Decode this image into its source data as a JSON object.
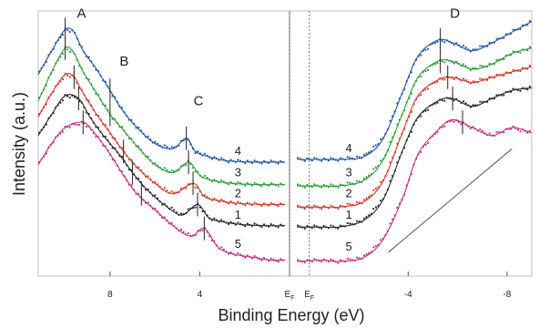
{
  "chart_data": {
    "type": "line",
    "xlabel": "Binding Energy (eV)",
    "ylabel": "Intensity (a.u.)",
    "left_panel": {
      "xlim": [
        11.2,
        0
      ],
      "ticks": [
        {
          "value": 8,
          "label": "8"
        },
        {
          "value": 4,
          "label": "4"
        }
      ],
      "fermi_label": "E",
      "fermi_sub": "F"
    },
    "right_panel": {
      "xlim": [
        0.8,
        -9
      ],
      "ticks": [
        {
          "value": -4,
          "label": "-4"
        },
        {
          "value": -8,
          "label": "-8"
        }
      ],
      "fermi_label": "E",
      "fermi_sub": "F"
    },
    "ylim": [
      0,
      10
    ],
    "peak_labels": [
      {
        "text": "A",
        "panel": "left",
        "x": 9.8,
        "y": 9.6
      },
      {
        "text": "B",
        "panel": "left",
        "x": 7.9,
        "y": 7.8
      },
      {
        "text": "C",
        "panel": "left",
        "x": 4.6,
        "y": 6.3
      },
      {
        "text": "D",
        "panel": "right",
        "x": -5.4,
        "y": 9.6
      }
    ],
    "series": [
      {
        "name": "4",
        "color": "#2155a8",
        "left": [
          [
            11.2,
            7.6
          ],
          [
            10.6,
            8.5
          ],
          [
            10.0,
            9.3
          ],
          [
            9.6,
            9.2
          ],
          [
            9.2,
            8.5
          ],
          [
            8.6,
            7.8
          ],
          [
            8.0,
            7.0
          ],
          [
            7.4,
            6.2
          ],
          [
            6.8,
            5.6
          ],
          [
            6.0,
            5.0
          ],
          [
            5.2,
            4.8
          ],
          [
            4.6,
            5.2
          ],
          [
            4.2,
            4.7
          ],
          [
            3.6,
            4.5
          ],
          [
            2.8,
            4.35
          ],
          [
            1.6,
            4.3
          ],
          [
            0.2,
            4.3
          ]
        ],
        "right": [
          [
            0.5,
            4.4
          ],
          [
            -0.5,
            4.4
          ],
          [
            -1.2,
            4.4
          ],
          [
            -2.2,
            4.5
          ],
          [
            -3.0,
            5.2
          ],
          [
            -3.8,
            7.0
          ],
          [
            -4.4,
            8.3
          ],
          [
            -5.2,
            8.9
          ],
          [
            -5.8,
            8.8
          ],
          [
            -6.6,
            8.5
          ],
          [
            -7.4,
            8.8
          ],
          [
            -8.2,
            9.2
          ],
          [
            -9.0,
            9.6
          ]
        ],
        "label_left": [
          2.3,
          4.5
        ],
        "label_right": [
          -1.6,
          4.6
        ]
      },
      {
        "name": "3",
        "color": "#2e9e3a",
        "left": [
          [
            11.2,
            6.6
          ],
          [
            10.6,
            7.7
          ],
          [
            10.0,
            8.6
          ],
          [
            9.6,
            8.4
          ],
          [
            9.2,
            7.7
          ],
          [
            8.6,
            6.9
          ],
          [
            8.0,
            6.1
          ],
          [
            7.4,
            5.5
          ],
          [
            6.8,
            4.9
          ],
          [
            6.0,
            4.2
          ],
          [
            5.2,
            3.9
          ],
          [
            4.5,
            4.3
          ],
          [
            4.0,
            3.8
          ],
          [
            3.4,
            3.6
          ],
          [
            2.6,
            3.5
          ],
          [
            1.4,
            3.45
          ],
          [
            0.2,
            3.45
          ]
        ],
        "right": [
          [
            0.5,
            3.4
          ],
          [
            -0.5,
            3.4
          ],
          [
            -1.2,
            3.4
          ],
          [
            -2.2,
            3.6
          ],
          [
            -3.0,
            4.4
          ],
          [
            -3.8,
            6.2
          ],
          [
            -4.4,
            7.5
          ],
          [
            -5.2,
            8.1
          ],
          [
            -5.8,
            8.1
          ],
          [
            -6.6,
            7.8
          ],
          [
            -7.4,
            8.0
          ],
          [
            -8.2,
            8.4
          ],
          [
            -9.0,
            8.6
          ]
        ],
        "label_left": [
          2.3,
          3.7
        ],
        "label_right": [
          -1.6,
          3.7
        ]
      },
      {
        "name": "2",
        "color": "#d63a2a",
        "left": [
          [
            11.2,
            6.0
          ],
          [
            10.6,
            6.9
          ],
          [
            10.0,
            7.6
          ],
          [
            9.6,
            7.5
          ],
          [
            9.2,
            6.9
          ],
          [
            8.6,
            6.1
          ],
          [
            8.0,
            5.4
          ],
          [
            7.4,
            4.7
          ],
          [
            6.8,
            4.1
          ],
          [
            6.0,
            3.5
          ],
          [
            5.2,
            3.1
          ],
          [
            4.3,
            3.5
          ],
          [
            3.8,
            3.0
          ],
          [
            3.2,
            2.85
          ],
          [
            2.4,
            2.75
          ],
          [
            1.2,
            2.7
          ],
          [
            0.2,
            2.7
          ]
        ],
        "right": [
          [
            0.5,
            2.6
          ],
          [
            -0.5,
            2.6
          ],
          [
            -1.2,
            2.6
          ],
          [
            -2.2,
            2.8
          ],
          [
            -3.0,
            3.6
          ],
          [
            -3.8,
            5.5
          ],
          [
            -4.4,
            6.8
          ],
          [
            -5.2,
            7.4
          ],
          [
            -5.8,
            7.5
          ],
          [
            -6.6,
            7.3
          ],
          [
            -7.4,
            7.5
          ],
          [
            -8.2,
            7.7
          ],
          [
            -9.0,
            7.9
          ]
        ],
        "label_left": [
          2.3,
          2.9
        ],
        "label_right": [
          -1.6,
          2.9
        ]
      },
      {
        "name": "1",
        "color": "#2a2a2a",
        "left": [
          [
            11.2,
            5.3
          ],
          [
            10.6,
            6.1
          ],
          [
            10.0,
            6.8
          ],
          [
            9.4,
            6.7
          ],
          [
            8.9,
            6.0
          ],
          [
            8.3,
            5.3
          ],
          [
            7.6,
            4.6
          ],
          [
            7.0,
            3.9
          ],
          [
            6.4,
            3.3
          ],
          [
            5.6,
            2.7
          ],
          [
            4.8,
            2.3
          ],
          [
            4.1,
            2.7
          ],
          [
            3.6,
            2.2
          ],
          [
            3.0,
            2.05
          ],
          [
            2.2,
            1.95
          ],
          [
            1.0,
            1.9
          ],
          [
            0.2,
            1.9
          ]
        ],
        "right": [
          [
            0.5,
            1.85
          ],
          [
            -0.5,
            1.85
          ],
          [
            -1.2,
            1.85
          ],
          [
            -2.2,
            2.1
          ],
          [
            -3.0,
            2.9
          ],
          [
            -3.8,
            4.8
          ],
          [
            -4.4,
            6.0
          ],
          [
            -5.2,
            6.6
          ],
          [
            -5.8,
            6.7
          ],
          [
            -6.6,
            6.4
          ],
          [
            -7.4,
            6.7
          ],
          [
            -8.2,
            7.0
          ],
          [
            -9.0,
            7.1
          ]
        ],
        "label_left": [
          2.3,
          2.1
        ],
        "label_right": [
          -1.6,
          2.1
        ]
      },
      {
        "name": "5",
        "color": "#c8307e",
        "left": [
          [
            11.2,
            4.2
          ],
          [
            10.6,
            5.0
          ],
          [
            10.0,
            5.6
          ],
          [
            9.2,
            5.8
          ],
          [
            8.6,
            5.3
          ],
          [
            8.0,
            4.6
          ],
          [
            7.4,
            3.8
          ],
          [
            6.8,
            3.1
          ],
          [
            6.0,
            2.5
          ],
          [
            5.2,
            1.9
          ],
          [
            4.4,
            1.5
          ],
          [
            3.8,
            1.8
          ],
          [
            3.2,
            1.1
          ],
          [
            2.6,
            0.85
          ],
          [
            1.6,
            0.7
          ],
          [
            0.8,
            0.6
          ],
          [
            0.2,
            0.6
          ]
        ],
        "right": [
          [
            0.5,
            0.55
          ],
          [
            -0.5,
            0.6
          ],
          [
            -1.2,
            0.55
          ],
          [
            -2.2,
            0.7
          ],
          [
            -3.0,
            1.4
          ],
          [
            -3.8,
            3.0
          ],
          [
            -4.4,
            4.6
          ],
          [
            -5.2,
            5.5
          ],
          [
            -5.8,
            5.9
          ],
          [
            -6.6,
            5.6
          ],
          [
            -7.4,
            5.3
          ],
          [
            -8.2,
            5.6
          ],
          [
            -9.0,
            5.4
          ]
        ],
        "label_left": [
          2.3,
          1.0
        ],
        "label_right": [
          -1.6,
          0.9
        ]
      }
    ],
    "peak_markers": [
      {
        "panel": "left",
        "x": 10.0,
        "ys": [
          9.3,
          8.6
        ]
      },
      {
        "panel": "left",
        "x": 9.6,
        "ys": [
          7.5
        ]
      },
      {
        "panel": "left",
        "x": 9.4,
        "ys": [
          6.7
        ]
      },
      {
        "panel": "left",
        "x": 9.2,
        "ys": [
          5.8
        ]
      },
      {
        "panel": "left",
        "x": 8.0,
        "ys": [
          7.0,
          6.1
        ]
      },
      {
        "panel": "left",
        "x": 7.4,
        "ys": [
          4.7
        ]
      },
      {
        "panel": "left",
        "x": 7.0,
        "ys": [
          3.9
        ]
      },
      {
        "panel": "left",
        "x": 6.6,
        "ys": [
          3.1
        ]
      },
      {
        "panel": "left",
        "x": 4.6,
        "ys": [
          5.2
        ]
      },
      {
        "panel": "left",
        "x": 4.5,
        "ys": [
          4.3
        ]
      },
      {
        "panel": "left",
        "x": 4.3,
        "ys": [
          3.5
        ]
      },
      {
        "panel": "left",
        "x": 4.1,
        "ys": [
          2.7
        ]
      },
      {
        "panel": "left",
        "x": 3.8,
        "ys": [
          1.8
        ]
      },
      {
        "panel": "right",
        "x": -5.3,
        "ys": [
          8.9,
          8.1
        ]
      },
      {
        "panel": "right",
        "x": -5.6,
        "ys": [
          7.5
        ]
      },
      {
        "panel": "right",
        "x": -5.8,
        "ys": [
          6.7
        ]
      },
      {
        "panel": "right",
        "x": -6.2,
        "ys": [
          5.8
        ]
      }
    ],
    "guide_line": {
      "panel": "right",
      "from": [
        -3.2,
        0.9
      ],
      "to": [
        -8.2,
        4.8
      ]
    }
  }
}
